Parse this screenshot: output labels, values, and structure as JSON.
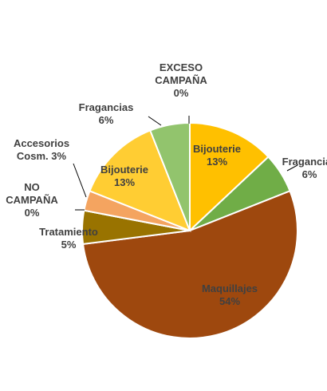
{
  "chart_data": {
    "type": "pie",
    "start_angle_deg": 0,
    "direction": "clockwise",
    "slices": [
      {
        "name": "Bijouterie",
        "label_lines": [
          "Bijouterie",
          "13%"
        ],
        "value": 13,
        "color": "#ffc000",
        "label_color": "#404040"
      },
      {
        "name": "Fragancias",
        "label_lines": [
          "Fragancias",
          "6%"
        ],
        "value": 6,
        "color": "#70ad47",
        "label_color": "#404040"
      },
      {
        "name": "Maquillajes",
        "label_lines": [
          "Maquillajes",
          "54%"
        ],
        "value": 54,
        "color": "#9e480e",
        "label_color": "#404040"
      },
      {
        "name": "Tratamiento",
        "label_lines": [
          "Tratamiento",
          "5%"
        ],
        "value": 5,
        "color": "#997300",
        "label_color": "#404040"
      },
      {
        "name": "NO CAMPAÑA",
        "label_lines": [
          "NO",
          "CAMPAÑA",
          "0%"
        ],
        "value": 0,
        "color": "#7f6000",
        "label_color": "#404040"
      },
      {
        "name": "Accesorios Cosm.",
        "label_lines": [
          "Accesorios",
          "Cosm. 3%"
        ],
        "value": 3,
        "color": "#f4a460",
        "label_color": "#404040"
      },
      {
        "name": "Bijouterie",
        "label_lines": [
          "Bijouterie",
          "13%"
        ],
        "value": 13,
        "color": "#ffcd33",
        "label_color": "#404040"
      },
      {
        "name": "Fragancias",
        "label_lines": [
          "Fragancias",
          "6%"
        ],
        "value": 6,
        "color": "#92c46d",
        "label_color": "#404040"
      },
      {
        "name": "EXCESO CAMPAÑA",
        "label_lines": [
          "EXCESO",
          "CAMPAÑA",
          "0%"
        ],
        "value": 0,
        "color": "#bf9000",
        "label_color": "#404040"
      }
    ],
    "title": "",
    "legend": "none"
  }
}
